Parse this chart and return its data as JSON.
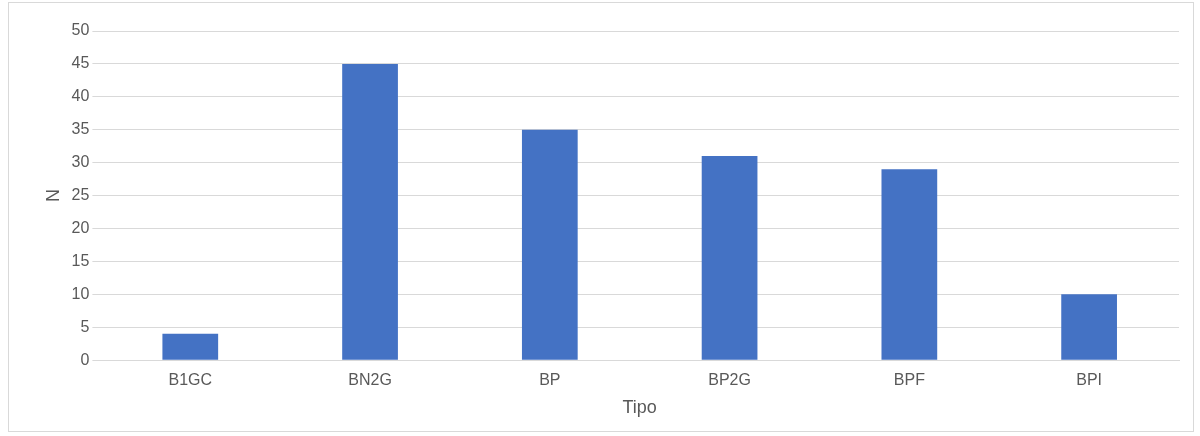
{
  "chart_data": {
    "type": "bar",
    "xlabel": "Tipo",
    "ylabel": "N",
    "categories": [
      "B1GC",
      "BN2G",
      "BP",
      "BP2G",
      "BPF",
      "BPI"
    ],
    "values": [
      4,
      45,
      35,
      31,
      29,
      10
    ],
    "color": "#4472c4",
    "ylim": [
      0,
      50
    ],
    "yticks": [
      0,
      5,
      10,
      15,
      20,
      25,
      30,
      35,
      40,
      45,
      50
    ],
    "grid": "y",
    "legend": false
  }
}
